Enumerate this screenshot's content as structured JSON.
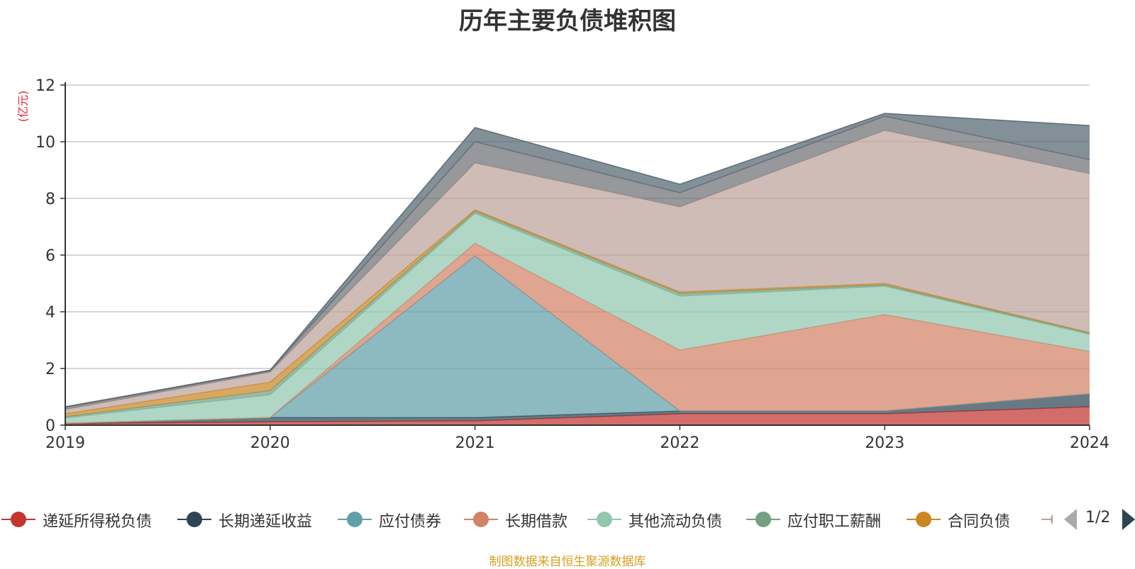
{
  "chart_data": {
    "type": "area",
    "stacked": true,
    "title": "历年主要负债堆积图",
    "unit_label": "(亿元)",
    "categories": [
      "2019",
      "2020",
      "2021",
      "2022",
      "2023",
      "2024"
    ],
    "y_ticks": [
      "0",
      "2",
      "4",
      "6",
      "8",
      "10",
      "12"
    ],
    "ylim": [
      0,
      12
    ],
    "grid": true,
    "legend_position": "bottom",
    "series": [
      {
        "name": "递延所得税负债",
        "color": "#c23531",
        "values": [
          0.05,
          0.12,
          0.15,
          0.4,
          0.4,
          0.65
        ]
      },
      {
        "name": "长期递延收益",
        "color": "#2f4554",
        "values": [
          0.02,
          0.15,
          0.12,
          0.1,
          0.1,
          0.45
        ]
      },
      {
        "name": "应付债券",
        "color": "#61a0a8",
        "values": [
          0,
          0,
          5.7,
          0,
          0,
          0
        ]
      },
      {
        "name": "长期借款",
        "color": "#d48265",
        "values": [
          0,
          0,
          0.45,
          2.15,
          3.4,
          1.5
        ]
      },
      {
        "name": "其他流动负债",
        "color": "#91c7ae",
        "values": [
          0.18,
          0.8,
          1.05,
          1.9,
          1.0,
          0.6
        ]
      },
      {
        "name": "应付职工薪酬",
        "color": "#749f83",
        "values": [
          0.05,
          0.15,
          0.08,
          0.1,
          0.05,
          0.05
        ]
      },
      {
        "name": "合同负债",
        "color": "#ca8622",
        "values": [
          0.1,
          0.3,
          0.05,
          0.05,
          0.05,
          0.02
        ]
      },
      {
        "name": "",
        "color": "#bda29a",
        "values": [
          0.15,
          0.35,
          1.65,
          3.0,
          5.4,
          5.6
        ]
      },
      {
        "name": "",
        "color": "#6e7074",
        "values": [
          0.08,
          0.05,
          0.75,
          0.5,
          0.5,
          0.5
        ]
      },
      {
        "name": "",
        "color": "#546570",
        "values": [
          0.02,
          0.02,
          0.5,
          0.3,
          0.1,
          1.2
        ]
      }
    ]
  },
  "legend": {
    "items": [
      {
        "label": "递延所得税负债",
        "color": "#c23531"
      },
      {
        "label": "长期递延收益",
        "color": "#2f4554"
      },
      {
        "label": "应付债券",
        "color": "#61a0a8"
      },
      {
        "label": "长期借款",
        "color": "#d48265"
      },
      {
        "label": "其他流动负债",
        "color": "#91c7ae"
      },
      {
        "label": "应付职工薪酬",
        "color": "#749f83"
      },
      {
        "label": "合同负债",
        "color": "#ca8622"
      }
    ],
    "partial_color": "#bda29a",
    "page_text": "1/2"
  },
  "source_text": "制图数据来自恒生聚源数据库"
}
